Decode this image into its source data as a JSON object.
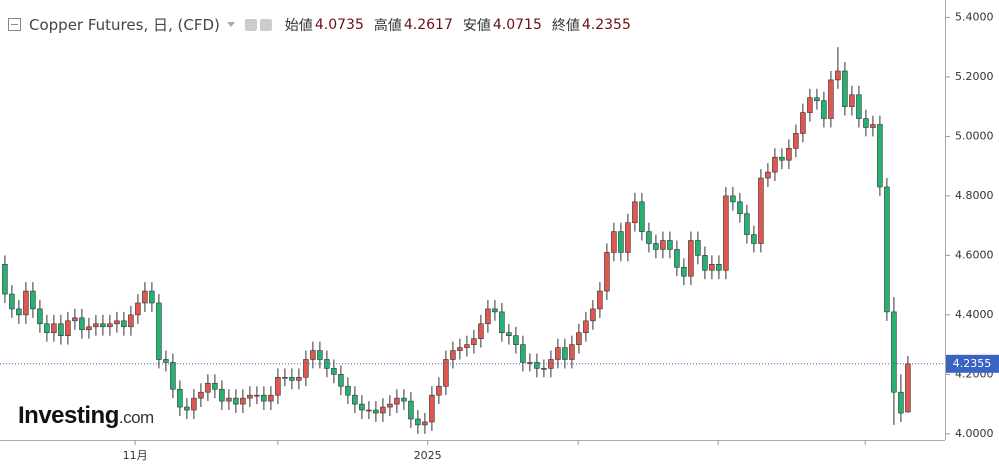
{
  "chart_data": {
    "type": "candlestick",
    "title": "Copper Futures, 日, (CFD)",
    "ohlc_labels": {
      "open": "始値",
      "high": "高値",
      "low": "安値",
      "close": "終値"
    },
    "ohlc_values": {
      "open": 4.0735,
      "high": 4.2617,
      "low": 4.0715,
      "close": 4.2355
    },
    "logo": {
      "main": "Investing",
      "suffix": ".com"
    },
    "up_color": "#e0574f",
    "down_color": "#25b271",
    "last_line_color": "#3b63c4",
    "series": [
      {
        "open": [
          4.57,
          4.47,
          4.42,
          4.4,
          4.48,
          4.42,
          4.37,
          4.34,
          4.37,
          4.33,
          4.38,
          4.39,
          4.35,
          4.36,
          4.37,
          4.36,
          4.37,
          4.38,
          4.36,
          4.4,
          4.44,
          4.48,
          4.44,
          4.25,
          4.24,
          4.15,
          4.09,
          4.08,
          4.12,
          4.14,
          4.17,
          4.15,
          4.11,
          4.12,
          4.1,
          4.12,
          4.13,
          4.13,
          4.11,
          4.13,
          4.19,
          4.19,
          4.18,
          4.19,
          4.25,
          4.28,
          4.25,
          4.22,
          4.2,
          4.16,
          4.13,
          4.1,
          4.08,
          4.08,
          4.07,
          4.09,
          4.1,
          4.12,
          4.11,
          4.05,
          4.03,
          4.04,
          4.13,
          4.16,
          4.25,
          4.28,
          4.29,
          4.3,
          4.32,
          4.37,
          4.42,
          4.41,
          4.34,
          4.33,
          4.3,
          4.24,
          4.24,
          4.22,
          4.22,
          4.25,
          4.29,
          4.25,
          4.3,
          4.34,
          4.38,
          4.42,
          4.48,
          4.61,
          4.68,
          4.61,
          4.71,
          4.78,
          4.68,
          4.64,
          4.62,
          4.65,
          4.62,
          4.56,
          4.53,
          4.65,
          4.6,
          4.55,
          4.57,
          4.55,
          4.8,
          4.78,
          4.74,
          4.67,
          4.64,
          4.86,
          4.88,
          4.93,
          4.92,
          4.96,
          5.01,
          5.08,
          5.13,
          5.12,
          5.06,
          5.19,
          5.22,
          5.1,
          5.14,
          5.06,
          5.03,
          5.04,
          4.83,
          4.41,
          4.14,
          4.0735
        ],
        "high": [
          4.6,
          4.5,
          4.45,
          4.51,
          4.51,
          4.45,
          4.4,
          4.4,
          4.4,
          4.41,
          4.42,
          4.42,
          4.39,
          4.4,
          4.4,
          4.4,
          4.41,
          4.41,
          4.43,
          4.47,
          4.51,
          4.51,
          4.47,
          4.28,
          4.27,
          4.18,
          4.12,
          4.15,
          4.17,
          4.2,
          4.2,
          4.18,
          4.15,
          4.15,
          4.15,
          4.16,
          4.16,
          4.16,
          4.16,
          4.22,
          4.22,
          4.22,
          4.22,
          4.28,
          4.31,
          4.31,
          4.28,
          4.25,
          4.23,
          4.19,
          4.16,
          4.13,
          4.11,
          4.11,
          4.12,
          4.13,
          4.15,
          4.15,
          4.14,
          4.08,
          4.07,
          4.16,
          4.19,
          4.28,
          4.31,
          4.32,
          4.33,
          4.35,
          4.4,
          4.45,
          4.45,
          4.44,
          4.37,
          4.36,
          4.33,
          4.27,
          4.27,
          4.25,
          4.28,
          4.32,
          4.32,
          4.33,
          4.37,
          4.41,
          4.45,
          4.51,
          4.64,
          4.71,
          4.71,
          4.74,
          4.81,
          4.81,
          4.71,
          4.67,
          4.68,
          4.68,
          4.65,
          4.59,
          4.68,
          4.68,
          4.63,
          4.6,
          4.6,
          4.83,
          4.83,
          4.81,
          4.77,
          4.7,
          4.89,
          4.91,
          4.96,
          4.96,
          4.99,
          5.04,
          5.11,
          5.16,
          5.16,
          5.15,
          5.22,
          5.3,
          5.25,
          5.17,
          5.17,
          5.09,
          5.07,
          5.07,
          4.86,
          4.46,
          4.2,
          4.2617
        ],
        "low": [
          4.44,
          4.39,
          4.37,
          4.37,
          4.39,
          4.34,
          4.31,
          4.31,
          4.3,
          4.3,
          4.35,
          4.32,
          4.32,
          4.33,
          4.33,
          4.33,
          4.34,
          4.33,
          4.33,
          4.37,
          4.41,
          4.41,
          4.22,
          4.21,
          4.12,
          4.06,
          4.05,
          4.05,
          4.09,
          4.11,
          4.12,
          4.08,
          4.08,
          4.07,
          4.07,
          4.09,
          4.1,
          4.08,
          4.08,
          4.1,
          4.16,
          4.15,
          4.15,
          4.16,
          4.22,
          4.22,
          4.19,
          4.17,
          4.13,
          4.1,
          4.07,
          4.05,
          4.05,
          4.04,
          4.04,
          4.06,
          4.07,
          4.08,
          4.02,
          4.0,
          4.0,
          4.01,
          4.1,
          4.13,
          4.22,
          4.25,
          4.26,
          4.27,
          4.29,
          4.34,
          4.38,
          4.31,
          4.3,
          4.27,
          4.21,
          4.21,
          4.19,
          4.19,
          4.19,
          4.22,
          4.22,
          4.22,
          4.27,
          4.31,
          4.35,
          4.39,
          4.45,
          4.58,
          4.58,
          4.58,
          4.68,
          4.65,
          4.61,
          4.59,
          4.59,
          4.59,
          4.53,
          4.5,
          4.5,
          4.57,
          4.52,
          4.52,
          4.52,
          4.52,
          4.75,
          4.71,
          4.64,
          4.61,
          4.61,
          4.83,
          4.85,
          4.89,
          4.89,
          4.93,
          4.98,
          5.05,
          5.09,
          5.03,
          5.03,
          5.16,
          5.07,
          5.07,
          5.03,
          5.0,
          5.0,
          4.8,
          4.38,
          4.03,
          4.04,
          4.0715
        ],
        "close": [
          4.47,
          4.42,
          4.4,
          4.48,
          4.42,
          4.37,
          4.34,
          4.37,
          4.33,
          4.38,
          4.39,
          4.35,
          4.36,
          4.37,
          4.36,
          4.37,
          4.38,
          4.36,
          4.4,
          4.44,
          4.48,
          4.44,
          4.25,
          4.24,
          4.15,
          4.09,
          4.08,
          4.12,
          4.14,
          4.17,
          4.15,
          4.11,
          4.12,
          4.1,
          4.12,
          4.13,
          4.13,
          4.11,
          4.13,
          4.19,
          4.19,
          4.18,
          4.19,
          4.25,
          4.28,
          4.25,
          4.22,
          4.2,
          4.16,
          4.13,
          4.1,
          4.08,
          4.08,
          4.07,
          4.09,
          4.1,
          4.12,
          4.11,
          4.05,
          4.03,
          4.04,
          4.13,
          4.16,
          4.25,
          4.28,
          4.29,
          4.3,
          4.32,
          4.37,
          4.42,
          4.41,
          4.34,
          4.33,
          4.3,
          4.24,
          4.24,
          4.22,
          4.22,
          4.25,
          4.29,
          4.25,
          4.3,
          4.34,
          4.38,
          4.42,
          4.48,
          4.61,
          4.68,
          4.61,
          4.71,
          4.78,
          4.68,
          4.64,
          4.62,
          4.65,
          4.62,
          4.56,
          4.53,
          4.65,
          4.6,
          4.55,
          4.57,
          4.55,
          4.8,
          4.78,
          4.74,
          4.67,
          4.64,
          4.86,
          4.88,
          4.93,
          4.92,
          4.96,
          5.01,
          5.08,
          5.13,
          5.12,
          5.06,
          5.19,
          5.22,
          5.1,
          5.14,
          5.06,
          5.03,
          5.04,
          4.83,
          4.41,
          4.14,
          4.07,
          4.2355
        ]
      }
    ],
    "xlim": [
      -0.7,
      134.3
    ],
    "xticks": [
      {
        "value": 18.6,
        "label": "11月"
      },
      {
        "value": 39,
        "label": null
      },
      {
        "value": 60.4,
        "label": "2025"
      },
      {
        "value": 81.9,
        "label": null
      },
      {
        "value": 101.9,
        "label": null
      },
      {
        "value": 122.9,
        "label": null
      }
    ],
    "ylim": [
      3.9793,
      5.4586
    ],
    "yticks": [
      {
        "value": 4.0,
        "label": "4.0000"
      },
      {
        "value": 4.2,
        "label": "4.2000"
      },
      {
        "value": 4.4,
        "label": "4.4000"
      },
      {
        "value": 4.6,
        "label": "4.6000"
      },
      {
        "value": 4.8,
        "label": "4.8000"
      },
      {
        "value": 5.0,
        "label": "5.0000"
      },
      {
        "value": 5.2,
        "label": "5.2000"
      },
      {
        "value": 5.4,
        "label": "5.4000"
      }
    ]
  }
}
